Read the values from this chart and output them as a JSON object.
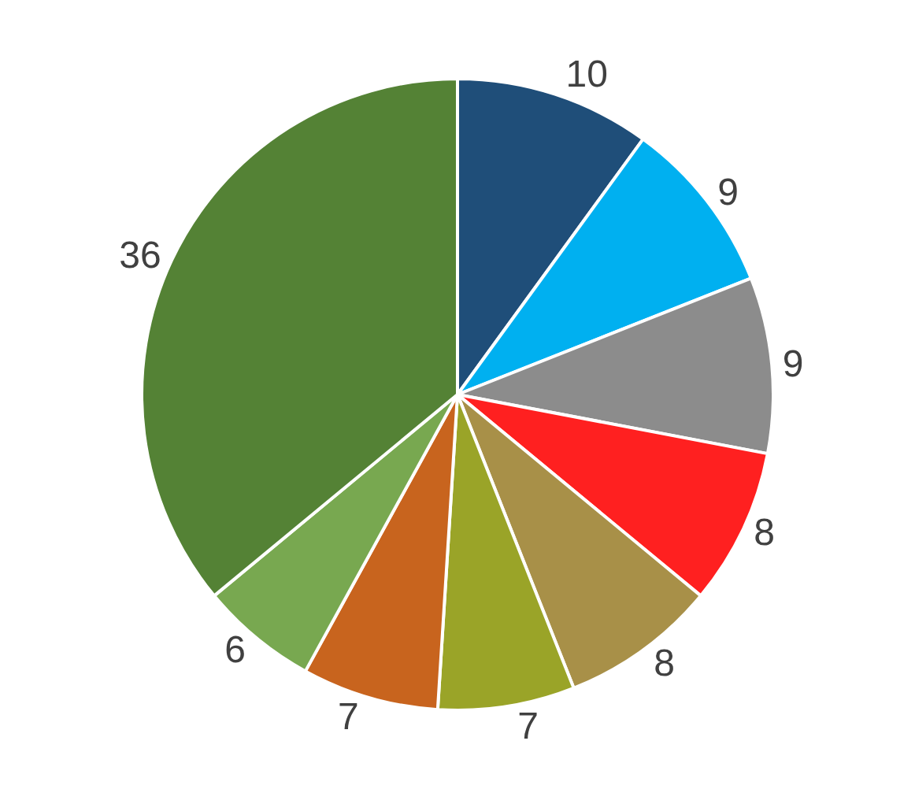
{
  "chart_data": {
    "type": "pie",
    "categories": [
      null,
      null,
      null,
      null,
      null,
      null,
      null,
      null,
      null
    ],
    "values": [
      10,
      9,
      9,
      8,
      8,
      7,
      7,
      6,
      36
    ],
    "colors": [
      "#1f4e79",
      "#00b0f0",
      "#8c8c8c",
      "#ff2020",
      "#a89048",
      "#9aa428",
      "#c8641e",
      "#78a850",
      "#548235"
    ],
    "data_labels": true,
    "legend": false
  }
}
